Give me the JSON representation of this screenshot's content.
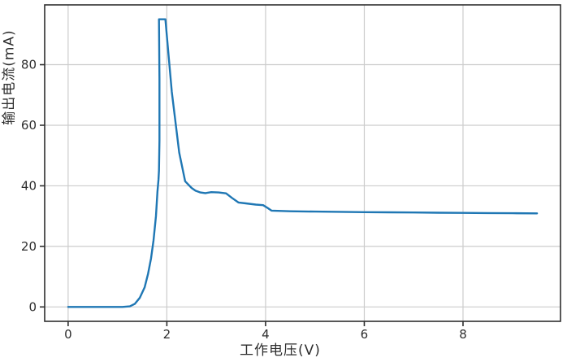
{
  "figure": {
    "background_color": "#ffffff",
    "title": ""
  },
  "chart_data": {
    "type": "line",
    "title": "",
    "xlabel": "工作电压(V)",
    "ylabel": "输出电流(mA)",
    "x_ticks": [
      0,
      2,
      4,
      6,
      8
    ],
    "y_ticks": [
      0,
      20,
      40,
      60,
      80
    ],
    "xlim": [
      -0.475,
      9.975
    ],
    "ylim": [
      -4.75,
      99.75
    ],
    "grid": true,
    "legend": "none",
    "line_color": "#1f77b4",
    "grid_color": "#cccccc",
    "spine_color": "#2e2e2e",
    "tick_color": "#2e2e2e",
    "tick_label_color": "#2e2e2e",
    "series": [
      {
        "name": "输出电流",
        "x": [
          0,
          0.3,
          0.6,
          0.9,
          1.1,
          1.25,
          1.35,
          1.45,
          1.55,
          1.62,
          1.68,
          1.73,
          1.78,
          1.81,
          1.83,
          1.84,
          1.85,
          1.85,
          1.84,
          1.97,
          2.1,
          2.25,
          2.37,
          2.5,
          2.58,
          2.68,
          2.78,
          2.9,
          3.05,
          3.2,
          3.32,
          3.45,
          3.6,
          3.8,
          3.95,
          4.05,
          4.12,
          4.5,
          5.0,
          5.5,
          6.0,
          6.5,
          7.0,
          7.5,
          8.0,
          8.5,
          9.0,
          9.5
        ],
        "y": [
          0,
          0,
          0,
          0,
          0,
          0.2,
          1,
          3,
          6.5,
          11,
          16,
          22,
          30,
          38,
          42,
          45,
          55,
          75,
          95,
          95,
          71,
          51,
          41.5,
          39.3,
          38.4,
          37.8,
          37.6,
          37.9,
          37.8,
          37.5,
          36,
          34.5,
          34.2,
          33.8,
          33.6,
          32.6,
          31.8,
          31.6,
          31.5,
          31.4,
          31.3,
          31.25,
          31.2,
          31.1,
          31.05,
          31.0,
          30.95,
          30.9
        ]
      }
    ]
  }
}
